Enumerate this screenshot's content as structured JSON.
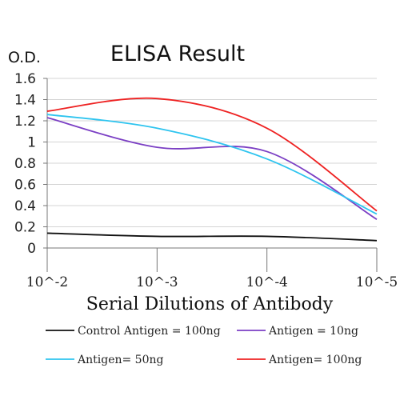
{
  "chart_data": {
    "type": "line",
    "title": "ELISA Result",
    "ylabel": "O.D.",
    "xlabel": "Serial Dilutions of Antibody",
    "x_tick_labels": [
      "10^-2",
      "10^-3",
      "10^-4",
      "10^-5"
    ],
    "x": [
      -2,
      -3,
      -4,
      -5
    ],
    "ylim": [
      0,
      1.6
    ],
    "y_ticks": [
      0,
      0.2,
      0.4,
      0.6,
      0.8,
      1,
      1.2,
      1.4,
      1.6
    ],
    "y_tick_labels": [
      "0",
      "0.2",
      "0.4",
      "0.6",
      "0.8",
      "1",
      "1.2",
      "1.4",
      "1.6"
    ],
    "grid": "horizontal",
    "legend_position": "bottom",
    "series": [
      {
        "name": "Control Antigen = 100ng",
        "color": "#111111",
        "values": [
          0.14,
          0.11,
          0.11,
          0.07
        ]
      },
      {
        "name": "Antigen = 10ng",
        "color": "#7b3fc4",
        "values": [
          1.23,
          0.95,
          0.91,
          0.27
        ]
      },
      {
        "name": "Antigen= 50ng",
        "color": "#2ec4ef",
        "values": [
          1.26,
          1.13,
          0.84,
          0.32
        ]
      },
      {
        "name": "Antigen= 100ng",
        "color": "#ee2222",
        "values": [
          1.29,
          1.41,
          1.13,
          0.35
        ]
      }
    ]
  }
}
